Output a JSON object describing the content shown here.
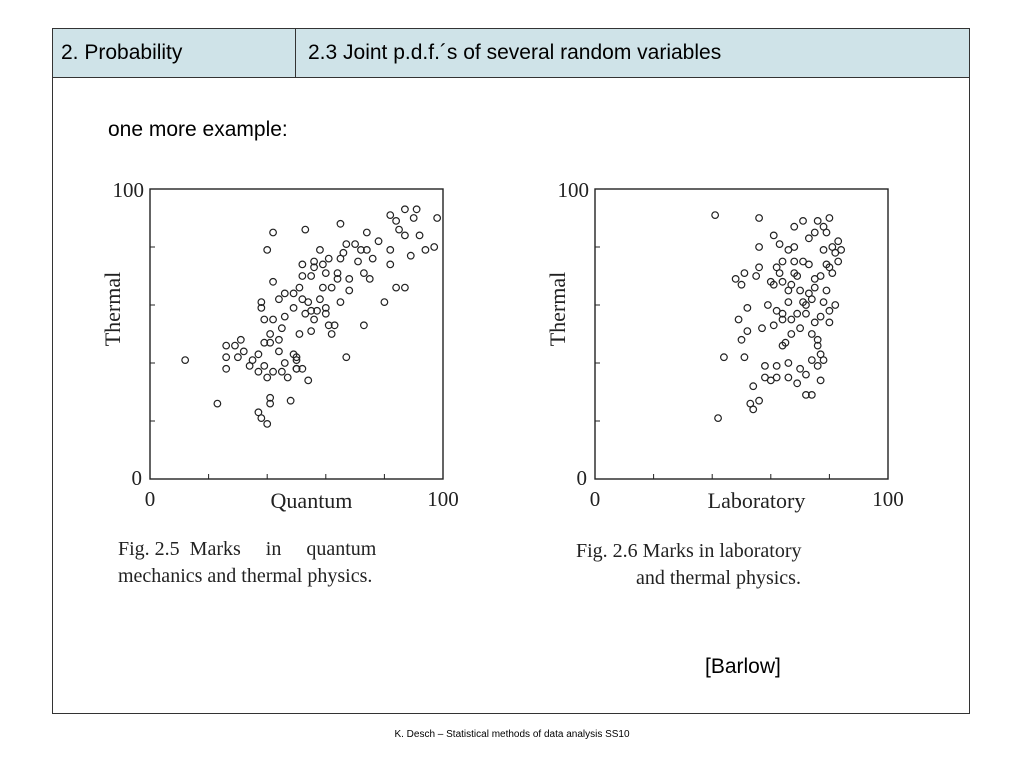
{
  "header": {
    "section": "2. Probability",
    "subsection": "2.3 Joint p.d.f.´s of several random variables"
  },
  "intro": "one more example:",
  "figures": {
    "left_caption_line1": "Fig. 2.5  Marks     in     quantum",
    "left_caption_line2": "mechanics and thermal physics.",
    "right_caption_line1": "Fig. 2.6  Marks in laboratory",
    "right_caption_line2": "and thermal physics."
  },
  "citation": "[Barlow]",
  "footer": "K. Desch – Statistical methods of data analysis SS10",
  "colors": {
    "header_bg": "#cfe3e8",
    "marker": "#222222"
  },
  "chart_data": [
    {
      "type": "scatter",
      "xlabel": "Quantum",
      "ylabel": "Thermal",
      "xlim": [
        0,
        100
      ],
      "ylim": [
        0,
        100
      ],
      "tick_labels": {
        "x_min": "0",
        "x_max": "100",
        "y_min": "0",
        "y_max": "100"
      },
      "grid": false,
      "points": [
        [
          12,
          41
        ],
        [
          23,
          26
        ],
        [
          26,
          46
        ],
        [
          26,
          42
        ],
        [
          26,
          38
        ],
        [
          29,
          46
        ],
        [
          30,
          42
        ],
        [
          31,
          48
        ],
        [
          32,
          44
        ],
        [
          34,
          39
        ],
        [
          35,
          41
        ],
        [
          37,
          43
        ],
        [
          37,
          37
        ],
        [
          37,
          23
        ],
        [
          38,
          21
        ],
        [
          38,
          61
        ],
        [
          38,
          59
        ],
        [
          39,
          55
        ],
        [
          39,
          47
        ],
        [
          39,
          39
        ],
        [
          40,
          35
        ],
        [
          40,
          19
        ],
        [
          40,
          79
        ],
        [
          41,
          50
        ],
        [
          41,
          47
        ],
        [
          41,
          28
        ],
        [
          41,
          26
        ],
        [
          42,
          55
        ],
        [
          42,
          37
        ],
        [
          42,
          68
        ],
        [
          42,
          85
        ],
        [
          44,
          44
        ],
        [
          44,
          48
        ],
        [
          44,
          62
        ],
        [
          45,
          52
        ],
        [
          45,
          37
        ],
        [
          46,
          56
        ],
        [
          46,
          40
        ],
        [
          46,
          64
        ],
        [
          47,
          35
        ],
        [
          48,
          27
        ],
        [
          49,
          59
        ],
        [
          49,
          43
        ],
        [
          49,
          64
        ],
        [
          50,
          41
        ],
        [
          50,
          38
        ],
        [
          50,
          42
        ],
        [
          50,
          38
        ],
        [
          51,
          66
        ],
        [
          51,
          50
        ],
        [
          52,
          62
        ],
        [
          52,
          70
        ],
        [
          52,
          74
        ],
        [
          52,
          38
        ],
        [
          53,
          86
        ],
        [
          53,
          57
        ],
        [
          54,
          61
        ],
        [
          54,
          34
        ],
        [
          55,
          58
        ],
        [
          55,
          51
        ],
        [
          55,
          70
        ],
        [
          56,
          55
        ],
        [
          56,
          75
        ],
        [
          56,
          73
        ],
        [
          57,
          58
        ],
        [
          58,
          62
        ],
        [
          58,
          79
        ],
        [
          59,
          66
        ],
        [
          59,
          74
        ],
        [
          60,
          59
        ],
        [
          60,
          57
        ],
        [
          60,
          71
        ],
        [
          61,
          53
        ],
        [
          61,
          76
        ],
        [
          62,
          50
        ],
        [
          62,
          66
        ],
        [
          63,
          53
        ],
        [
          64,
          71
        ],
        [
          64,
          69
        ],
        [
          65,
          88
        ],
        [
          65,
          76
        ],
        [
          65,
          61
        ],
        [
          66,
          78
        ],
        [
          67,
          42
        ],
        [
          67,
          81
        ],
        [
          68,
          65
        ],
        [
          68,
          69
        ],
        [
          70,
          81
        ],
        [
          71,
          75
        ],
        [
          72,
          79
        ],
        [
          73,
          71
        ],
        [
          73,
          53
        ],
        [
          74,
          85
        ],
        [
          74,
          79
        ],
        [
          75,
          69
        ],
        [
          76,
          76
        ],
        [
          78,
          82
        ],
        [
          80,
          61
        ],
        [
          82,
          79
        ],
        [
          82,
          74
        ],
        [
          82,
          91
        ],
        [
          84,
          66
        ],
        [
          84,
          89
        ],
        [
          85,
          86
        ],
        [
          87,
          66
        ],
        [
          87,
          93
        ],
        [
          87,
          84
        ],
        [
          89,
          77
        ],
        [
          90,
          90
        ],
        [
          91,
          93
        ],
        [
          92,
          84
        ],
        [
          94,
          79
        ],
        [
          97,
          80
        ],
        [
          98,
          90
        ]
      ]
    },
    {
      "type": "scatter",
      "xlabel": "Laboratory",
      "ylabel": "Thermal",
      "xlim": [
        0,
        100
      ],
      "ylim": [
        0,
        100
      ],
      "tick_labels": {
        "x_min": "0",
        "x_max": "100",
        "y_min": "0",
        "y_max": "100"
      },
      "grid": false,
      "points": [
        [
          41,
          91
        ],
        [
          42,
          21
        ],
        [
          44,
          42
        ],
        [
          48,
          69
        ],
        [
          49,
          55
        ],
        [
          50,
          67
        ],
        [
          50,
          48
        ],
        [
          51,
          71
        ],
        [
          51,
          42
        ],
        [
          52,
          59
        ],
        [
          52,
          51
        ],
        [
          53,
          26
        ],
        [
          54,
          24
        ],
        [
          54,
          32
        ],
        [
          55,
          70
        ],
        [
          56,
          73
        ],
        [
          56,
          90
        ],
        [
          56,
          80
        ],
        [
          56,
          27
        ],
        [
          57,
          52
        ],
        [
          58,
          39
        ],
        [
          58,
          35
        ],
        [
          59,
          60
        ],
        [
          60,
          68
        ],
        [
          60,
          34
        ],
        [
          61,
          84
        ],
        [
          61,
          53
        ],
        [
          61,
          67
        ],
        [
          62,
          73
        ],
        [
          62,
          58
        ],
        [
          62,
          39
        ],
        [
          62,
          35
        ],
        [
          63,
          71
        ],
        [
          63,
          81
        ],
        [
          64,
          75
        ],
        [
          64,
          55
        ],
        [
          64,
          46
        ],
        [
          64,
          57
        ],
        [
          64,
          68
        ],
        [
          65,
          47
        ],
        [
          66,
          61
        ],
        [
          66,
          79
        ],
        [
          66,
          40
        ],
        [
          66,
          35
        ],
        [
          66,
          65
        ],
        [
          67,
          55
        ],
        [
          67,
          50
        ],
        [
          67,
          67
        ],
        [
          68,
          80
        ],
        [
          68,
          75
        ],
        [
          68,
          71
        ],
        [
          68,
          87
        ],
        [
          69,
          70
        ],
        [
          69,
          33
        ],
        [
          69,
          57
        ],
        [
          70,
          65
        ],
        [
          70,
          52
        ],
        [
          70,
          38
        ],
        [
          71,
          61
        ],
        [
          71,
          89
        ],
        [
          71,
          75
        ],
        [
          72,
          60
        ],
        [
          72,
          29
        ],
        [
          72,
          57
        ],
        [
          72,
          36
        ],
        [
          73,
          74
        ],
        [
          73,
          83
        ],
        [
          73,
          64
        ],
        [
          74,
          62
        ],
        [
          74,
          29
        ],
        [
          74,
          50
        ],
        [
          74,
          41
        ],
        [
          75,
          66
        ],
        [
          75,
          54
        ],
        [
          75,
          85
        ],
        [
          75,
          69
        ],
        [
          76,
          39
        ],
        [
          76,
          48
        ],
        [
          76,
          89
        ],
        [
          76,
          46
        ],
        [
          77,
          34
        ],
        [
          77,
          43
        ],
        [
          77,
          56
        ],
        [
          77,
          70
        ],
        [
          78,
          61
        ],
        [
          78,
          79
        ],
        [
          78,
          41
        ],
        [
          78,
          87
        ],
        [
          79,
          85
        ],
        [
          79,
          74
        ],
        [
          79,
          65
        ],
        [
          80,
          54
        ],
        [
          80,
          58
        ],
        [
          80,
          73
        ],
        [
          80,
          90
        ],
        [
          81,
          71
        ],
        [
          81,
          80
        ],
        [
          82,
          78
        ],
        [
          82,
          60
        ],
        [
          83,
          75
        ],
        [
          83,
          82
        ],
        [
          84,
          79
        ]
      ]
    }
  ]
}
